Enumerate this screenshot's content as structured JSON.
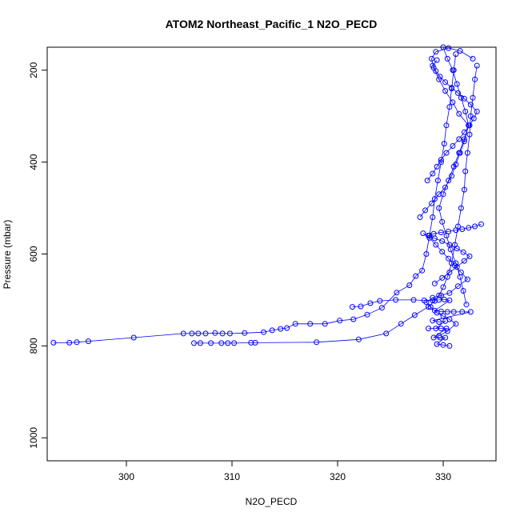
{
  "chart_data": {
    "type": "scatter",
    "title": "ATOM2 Northeast_Pacific_1 N2O_PECD",
    "xlabel": "N2O_PECD",
    "ylabel": "Pressure (mbar)",
    "xlim": [
      292.5,
      335
    ],
    "ylim": [
      1050,
      150
    ],
    "y_reversed": true,
    "x_ticks": [
      300,
      310,
      320,
      330
    ],
    "y_ticks": [
      200,
      400,
      600,
      800,
      1000
    ],
    "series_color": "#0000ff",
    "marker": "open-circle",
    "series": [
      {
        "points": [
          [
            293.1,
            793
          ],
          [
            294.6,
            793
          ],
          [
            295.3,
            792
          ],
          [
            296.4,
            790
          ],
          [
            300.7,
            782
          ],
          [
            305.4,
            773
          ],
          [
            306.2,
            773
          ],
          [
            306.8,
            773
          ],
          [
            307.5,
            773
          ],
          [
            308.4,
            772
          ],
          [
            309.1,
            773
          ],
          [
            309.8,
            773
          ],
          [
            311.2,
            772
          ],
          [
            313.0,
            770
          ],
          [
            313.8,
            766
          ],
          [
            314.6,
            763
          ],
          [
            315.2,
            761
          ],
          [
            316.0,
            752
          ],
          [
            317.4,
            752
          ],
          [
            318.8,
            752
          ],
          [
            320.2,
            745
          ],
          [
            321.5,
            742
          ],
          [
            322.8,
            732
          ],
          [
            324.2,
            717
          ],
          [
            325.6,
            684
          ],
          [
            326.8,
            668
          ],
          [
            327.4,
            648
          ],
          [
            328.0,
            636
          ],
          [
            328.4,
            600
          ],
          [
            328.7,
            560
          ],
          [
            329.0,
            520
          ],
          [
            329.2,
            480
          ],
          [
            329.5,
            440
          ],
          [
            329.8,
            400
          ],
          [
            330.1,
            360
          ],
          [
            330.3,
            320
          ],
          [
            330.6,
            280
          ],
          [
            330.8,
            240
          ],
          [
            331.0,
            200
          ],
          [
            331.2,
            165
          ]
        ]
      },
      {
        "points": [
          [
            306.4,
            794
          ],
          [
            307.0,
            794
          ],
          [
            308.0,
            794
          ],
          [
            309.0,
            794
          ],
          [
            309.6,
            794
          ],
          [
            310.2,
            794
          ],
          [
            311.8,
            793
          ],
          [
            312.2,
            793
          ],
          [
            318.0,
            792
          ],
          [
            322.0,
            786
          ],
          [
            324.6,
            773
          ],
          [
            326.0,
            752
          ],
          [
            327.3,
            733
          ],
          [
            328.6,
            715
          ],
          [
            329.2,
            702
          ],
          [
            329.6,
            690
          ],
          [
            330.0,
            672
          ],
          [
            330.4,
            650
          ],
          [
            330.8,
            620
          ],
          [
            331.1,
            580
          ],
          [
            331.4,
            540
          ],
          [
            331.7,
            500
          ],
          [
            332.0,
            460
          ],
          [
            332.1,
            420
          ],
          [
            332.3,
            380
          ],
          [
            332.5,
            340
          ],
          [
            332.6,
            300
          ],
          [
            332.8,
            260
          ],
          [
            333.0,
            220
          ],
          [
            333.2,
            190
          ]
        ]
      },
      {
        "points": [
          [
            321.4,
            715
          ],
          [
            322.2,
            714
          ],
          [
            323.1,
            707
          ],
          [
            324.0,
            702
          ],
          [
            325.5,
            700
          ],
          [
            327.2,
            700
          ],
          [
            328.2,
            701
          ],
          [
            329.0,
            701
          ],
          [
            329.6,
            700
          ],
          [
            330.1,
            699
          ],
          [
            330.6,
            701
          ],
          [
            329.2,
            723
          ],
          [
            329.8,
            725
          ],
          [
            330.4,
            726
          ],
          [
            331.0,
            726
          ],
          [
            331.8,
            726
          ],
          [
            332.6,
            726
          ],
          [
            329.0,
            745
          ],
          [
            329.6,
            748
          ],
          [
            330.2,
            746
          ],
          [
            329.3,
            762
          ],
          [
            328.6,
            762
          ],
          [
            329.8,
            762
          ],
          [
            330.3,
            762
          ],
          [
            329.1,
            782
          ],
          [
            329.7,
            782
          ],
          [
            330.2,
            782
          ],
          [
            329.4,
            796
          ],
          [
            330.0,
            798
          ],
          [
            330.6,
            800
          ]
        ]
      },
      {
        "points": [
          [
            327.8,
            520
          ],
          [
            328.3,
            505
          ],
          [
            328.9,
            490
          ],
          [
            329.6,
            470
          ],
          [
            330.2,
            455
          ],
          [
            330.8,
            430
          ],
          [
            331.2,
            405
          ],
          [
            331.6,
            380
          ],
          [
            332.0,
            355
          ],
          [
            332.4,
            320
          ],
          [
            331.5,
            295
          ],
          [
            330.9,
            270
          ],
          [
            330.2,
            245
          ],
          [
            329.6,
            220
          ],
          [
            329.1,
            195
          ],
          [
            328.9,
            175
          ],
          [
            329.3,
            160
          ],
          [
            330.5,
            152
          ],
          [
            331.6,
            158
          ],
          [
            332.8,
            175
          ]
        ]
      },
      {
        "points": [
          [
            328.1,
            555
          ],
          [
            328.7,
            565
          ],
          [
            329.3,
            580
          ],
          [
            329.9,
            595
          ],
          [
            330.5,
            610
          ],
          [
            331.1,
            625
          ],
          [
            331.7,
            640
          ],
          [
            332.3,
            655
          ],
          [
            331.4,
            670
          ],
          [
            330.6,
            685
          ],
          [
            329.8,
            690
          ],
          [
            329.0,
            695
          ],
          [
            328.4,
            705
          ],
          [
            328.8,
            715
          ],
          [
            329.4,
            728
          ],
          [
            330.0,
            735
          ],
          [
            330.6,
            742
          ],
          [
            331.2,
            752
          ],
          [
            330.4,
            768
          ],
          [
            329.6,
            778
          ]
        ]
      },
      {
        "points": [
          [
            330.0,
            150
          ],
          [
            330.4,
            175
          ],
          [
            330.9,
            200
          ],
          [
            331.3,
            230
          ],
          [
            331.7,
            260
          ],
          [
            332.1,
            290
          ],
          [
            332.4,
            320
          ],
          [
            332.0,
            350
          ],
          [
            331.5,
            380
          ],
          [
            331.0,
            410
          ],
          [
            330.5,
            440
          ],
          [
            330.0,
            470
          ],
          [
            329.6,
            500
          ],
          [
            329.9,
            530
          ],
          [
            330.3,
            560
          ],
          [
            330.7,
            590
          ],
          [
            331.2,
            620
          ],
          [
            331.6,
            650
          ],
          [
            331.9,
            680
          ],
          [
            332.2,
            710
          ]
        ]
      },
      {
        "points": [
          [
            328.5,
            440
          ],
          [
            329.0,
            425
          ],
          [
            329.4,
            410
          ],
          [
            329.8,
            395
          ],
          [
            330.3,
            380
          ],
          [
            330.9,
            365
          ],
          [
            331.5,
            350
          ],
          [
            332.0,
            335
          ],
          [
            332.5,
            320
          ],
          [
            332.9,
            305
          ],
          [
            333.2,
            290
          ],
          [
            332.6,
            275
          ],
          [
            332.0,
            262
          ],
          [
            331.4,
            250
          ],
          [
            330.8,
            238
          ],
          [
            330.2,
            226
          ],
          [
            329.7,
            214
          ],
          [
            329.3,
            202
          ],
          [
            329.0,
            190
          ],
          [
            329.4,
            178
          ]
        ]
      },
      {
        "points": [
          [
            333.6,
            535
          ],
          [
            333.0,
            540
          ],
          [
            332.4,
            543
          ],
          [
            331.8,
            546
          ],
          [
            331.2,
            548
          ],
          [
            330.5,
            551
          ],
          [
            329.8,
            553
          ],
          [
            329.1,
            556
          ],
          [
            328.6,
            560
          ],
          [
            329.2,
            566
          ],
          [
            329.9,
            572
          ],
          [
            330.6,
            580
          ],
          [
            331.3,
            588
          ],
          [
            331.9,
            596
          ],
          [
            332.5,
            605
          ],
          [
            332.0,
            615
          ],
          [
            331.3,
            628
          ],
          [
            330.6,
            640
          ],
          [
            329.9,
            652
          ],
          [
            329.2,
            664
          ]
        ]
      }
    ]
  }
}
